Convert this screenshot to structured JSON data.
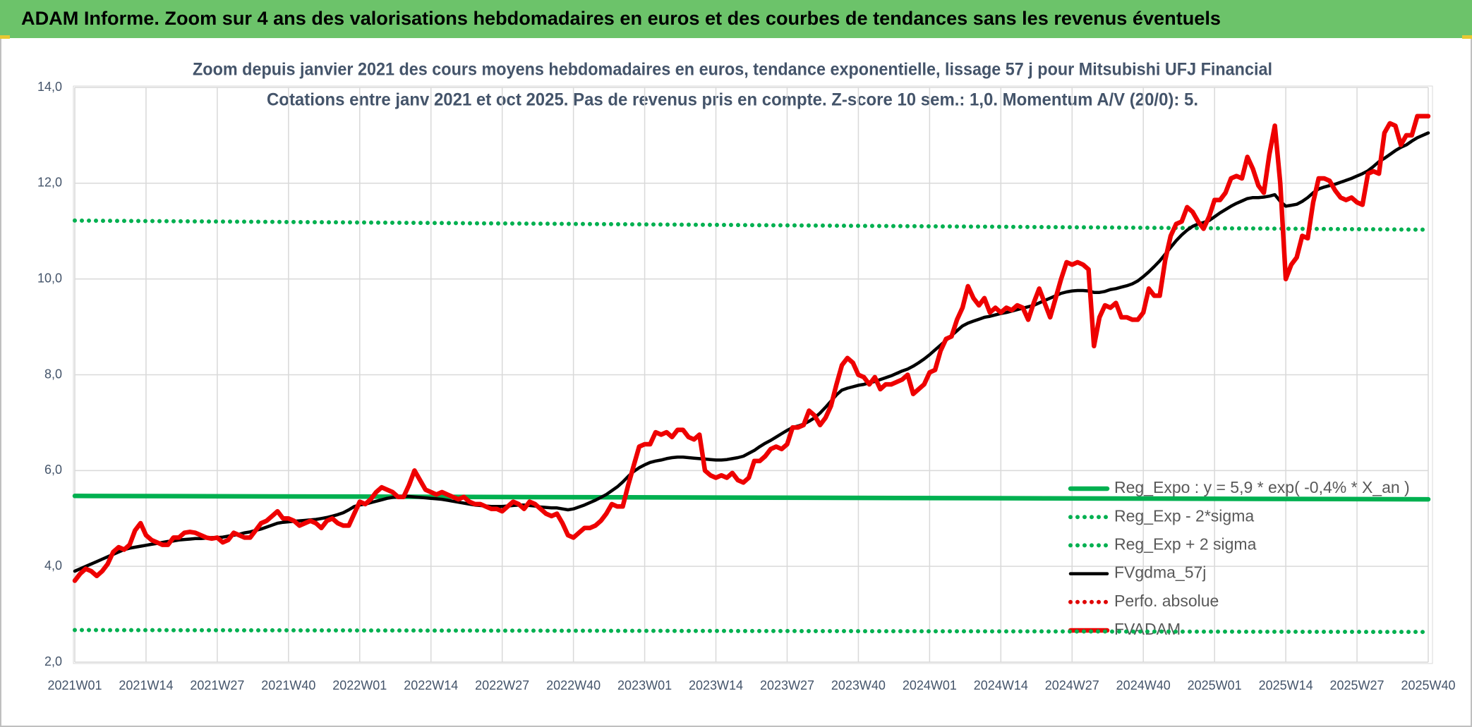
{
  "header": {
    "title": "ADAM Informe. Zoom sur 4 ans des valorisations hebdomadaires en euros et des courbes de tendances sans les revenus éventuels"
  },
  "chart_data": {
    "type": "line",
    "title": "Zoom depuis janvier 2021 des cours moyens hebdomadaires en euros, tendance exponentielle, lissage 57 j pour Mitsubishi UFJ Financial",
    "subtitle": "Cotations entre janv 2021 et oct 2025. Pas de revenus pris en compte. Z-score 10 sem.: 1,0. Momentum A/V (20/0): 5.",
    "ylim": [
      2,
      14
    ],
    "yticks": [
      {
        "value": 2,
        "label": "2,0"
      },
      {
        "value": 4,
        "label": "4,0"
      },
      {
        "value": 6,
        "label": "6,0"
      },
      {
        "value": 8,
        "label": "8,0"
      },
      {
        "value": 10,
        "label": "10,0"
      },
      {
        "value": 12,
        "label": "12,0"
      },
      {
        "value": 14,
        "label": "14,0"
      }
    ],
    "grid": true,
    "legend": "lower right",
    "categories": [
      "2021W01",
      null,
      null,
      null,
      null,
      null,
      null,
      null,
      null,
      null,
      null,
      null,
      null,
      "2021W14",
      null,
      null,
      null,
      null,
      null,
      null,
      null,
      null,
      null,
      null,
      null,
      null,
      "2021W27",
      null,
      null,
      null,
      null,
      null,
      null,
      null,
      null,
      null,
      null,
      null,
      null,
      "2021W40",
      null,
      null,
      null,
      null,
      null,
      null,
      null,
      null,
      null,
      null,
      null,
      null,
      "2022W01",
      null,
      null,
      null,
      null,
      null,
      null,
      null,
      null,
      null,
      null,
      null,
      null,
      "2022W14",
      null,
      null,
      null,
      null,
      null,
      null,
      null,
      null,
      null,
      null,
      null,
      null,
      "2022W27",
      null,
      null,
      null,
      null,
      null,
      null,
      null,
      null,
      null,
      null,
      null,
      null,
      "2022W40",
      null,
      null,
      null,
      null,
      null,
      null,
      null,
      null,
      null,
      null,
      null,
      null,
      "2023W01",
      null,
      null,
      null,
      null,
      null,
      null,
      null,
      null,
      null,
      null,
      null,
      null,
      "2023W14",
      null,
      null,
      null,
      null,
      null,
      null,
      null,
      null,
      null,
      null,
      null,
      null,
      "2023W27",
      null,
      null,
      null,
      null,
      null,
      null,
      null,
      null,
      null,
      null,
      null,
      null,
      "2023W40",
      null,
      null,
      null,
      null,
      null,
      null,
      null,
      null,
      null,
      null,
      null,
      null,
      "2024W01",
      null,
      null,
      null,
      null,
      null,
      null,
      null,
      null,
      null,
      null,
      null,
      null,
      "2024W14",
      null,
      null,
      null,
      null,
      null,
      null,
      null,
      null,
      null,
      null,
      null,
      null,
      "2024W27",
      null,
      null,
      null,
      null,
      null,
      null,
      null,
      null,
      null,
      null,
      null,
      null,
      "2024W40",
      null,
      null,
      null,
      null,
      null,
      null,
      null,
      null,
      null,
      null,
      null,
      null,
      "2025W01",
      null,
      null,
      null,
      null,
      null,
      null,
      null,
      null,
      null,
      null,
      null,
      null,
      "2025W14",
      null,
      null,
      null,
      null,
      null,
      null,
      null,
      null,
      null,
      null,
      null,
      null,
      "2025W27",
      null,
      null,
      null,
      null,
      null,
      null,
      null,
      null,
      null,
      null,
      null,
      null,
      "2025W40"
    ],
    "series": [
      {
        "name": "Reg_Expo : y = 5,9 * exp( -0,4% * X_an )",
        "color": "#00b050",
        "style": "solid",
        "x": [
          "2021W01",
          "2025W40"
        ],
        "values": [
          5.47,
          5.4
        ]
      },
      {
        "name": "Reg_Exp - 2*sigma",
        "color": "#00b050",
        "style": "dotted",
        "x": [
          "2021W01",
          "2025W40"
        ],
        "values": [
          2.67,
          2.63
        ]
      },
      {
        "name": "Reg_Exp + 2 sigma",
        "color": "#00b050",
        "style": "dotted",
        "x": [
          "2021W01",
          "2025W40"
        ],
        "values": [
          11.22,
          11.03
        ]
      },
      {
        "name": "FVgdma_57j",
        "color": "#000000",
        "style": "solid",
        "values": [
          3.9,
          3.95,
          4.0,
          4.05,
          4.1,
          4.15,
          4.2,
          4.25,
          4.3,
          4.35,
          4.38,
          4.4,
          4.42,
          4.44,
          4.46,
          4.48,
          4.5,
          4.52,
          4.53,
          4.55,
          4.56,
          4.57,
          4.58,
          4.58,
          4.59,
          4.6,
          4.6,
          4.61,
          4.63,
          4.65,
          4.67,
          4.7,
          4.72,
          4.75,
          4.78,
          4.82,
          4.86,
          4.9,
          4.92,
          4.93,
          4.94,
          4.95,
          4.96,
          4.97,
          4.98,
          5.0,
          5.02,
          5.05,
          5.08,
          5.12,
          5.18,
          5.25,
          5.28,
          5.3,
          5.33,
          5.36,
          5.39,
          5.42,
          5.44,
          5.45,
          5.46,
          5.46,
          5.45,
          5.44,
          5.43,
          5.42,
          5.41,
          5.4,
          5.38,
          5.36,
          5.34,
          5.32,
          5.3,
          5.28,
          5.27,
          5.26,
          5.25,
          5.25,
          5.25,
          5.26,
          5.27,
          5.28,
          5.28,
          5.27,
          5.26,
          5.24,
          5.23,
          5.22,
          5.22,
          5.2,
          5.18,
          5.2,
          5.24,
          5.28,
          5.33,
          5.38,
          5.44,
          5.5,
          5.58,
          5.66,
          5.76,
          5.88,
          5.98,
          6.06,
          6.12,
          6.17,
          6.2,
          6.22,
          6.25,
          6.27,
          6.28,
          6.28,
          6.27,
          6.26,
          6.25,
          6.24,
          6.23,
          6.22,
          6.22,
          6.23,
          6.25,
          6.27,
          6.3,
          6.36,
          6.42,
          6.5,
          6.57,
          6.63,
          6.7,
          6.77,
          6.84,
          6.9,
          6.93,
          6.97,
          7.03,
          7.1,
          7.2,
          7.32,
          7.45,
          7.58,
          7.68,
          7.72,
          7.75,
          7.78,
          7.8,
          7.83,
          7.86,
          7.9,
          7.94,
          7.98,
          8.03,
          8.08,
          8.12,
          8.18,
          8.25,
          8.33,
          8.42,
          8.52,
          8.62,
          8.72,
          8.82,
          8.92,
          9.02,
          9.08,
          9.12,
          9.16,
          9.2,
          9.22,
          9.25,
          9.28,
          9.3,
          9.33,
          9.36,
          9.39,
          9.42,
          9.45,
          9.5,
          9.55,
          9.6,
          9.65,
          9.7,
          9.73,
          9.75,
          9.76,
          9.76,
          9.75,
          9.72,
          9.72,
          9.74,
          9.78,
          9.8,
          9.83,
          9.86,
          9.9,
          9.96,
          10.05,
          10.15,
          10.26,
          10.38,
          10.52,
          10.66,
          10.8,
          10.92,
          11.02,
          11.1,
          11.15,
          11.18,
          11.22,
          11.3,
          11.38,
          11.45,
          11.52,
          11.58,
          11.63,
          11.68,
          11.7,
          11.7,
          11.71,
          11.73,
          11.76,
          11.62,
          11.52,
          11.54,
          11.56,
          11.62,
          11.7,
          11.8,
          11.88,
          11.92,
          11.95,
          11.98,
          12.02,
          12.06,
          12.1,
          12.15,
          12.2,
          12.26,
          12.35,
          12.45,
          12.52,
          12.6,
          12.68,
          12.75,
          12.8,
          12.88,
          12.95,
          13.0,
          13.05
        ]
      },
      {
        "name": "Perfo. absolue",
        "color": "#e00000",
        "style": "dotted"
      },
      {
        "name": "FVADAM",
        "color": "#ee0000",
        "style": "solid",
        "values": [
          3.7,
          3.85,
          3.95,
          3.9,
          3.8,
          3.9,
          4.05,
          4.3,
          4.4,
          4.35,
          4.45,
          4.75,
          4.9,
          4.65,
          4.55,
          4.5,
          4.45,
          4.45,
          4.6,
          4.6,
          4.7,
          4.72,
          4.7,
          4.65,
          4.6,
          4.58,
          4.6,
          4.5,
          4.55,
          4.7,
          4.65,
          4.6,
          4.6,
          4.75,
          4.9,
          4.95,
          5.05,
          5.15,
          5.0,
          5.0,
          4.95,
          4.85,
          4.9,
          4.95,
          4.9,
          4.8,
          4.95,
          5.0,
          4.9,
          4.85,
          4.85,
          5.1,
          5.35,
          5.3,
          5.4,
          5.55,
          5.65,
          5.6,
          5.55,
          5.45,
          5.45,
          5.7,
          6.0,
          5.8,
          5.6,
          5.55,
          5.5,
          5.55,
          5.5,
          5.45,
          5.4,
          5.45,
          5.35,
          5.3,
          5.3,
          5.25,
          5.2,
          5.2,
          5.15,
          5.25,
          5.35,
          5.3,
          5.2,
          5.35,
          5.3,
          5.2,
          5.1,
          5.05,
          5.1,
          4.9,
          4.65,
          4.6,
          4.7,
          4.8,
          4.8,
          4.85,
          4.95,
          5.1,
          5.3,
          5.25,
          5.25,
          5.7,
          6.1,
          6.5,
          6.55,
          6.55,
          6.8,
          6.75,
          6.8,
          6.7,
          6.85,
          6.85,
          6.7,
          6.65,
          6.75,
          6.0,
          5.9,
          5.85,
          5.9,
          5.85,
          5.95,
          5.8,
          5.75,
          5.85,
          6.2,
          6.2,
          6.3,
          6.45,
          6.5,
          6.45,
          6.55,
          6.9,
          6.9,
          6.95,
          7.25,
          7.15,
          6.95,
          7.1,
          7.35,
          7.8,
          8.2,
          8.35,
          8.25,
          8.0,
          7.95,
          7.8,
          7.95,
          7.7,
          7.8,
          7.8,
          7.85,
          7.9,
          8.0,
          7.6,
          7.7,
          7.8,
          8.05,
          8.1,
          8.5,
          8.75,
          8.8,
          9.15,
          9.4,
          9.85,
          9.6,
          9.45,
          9.6,
          9.3,
          9.4,
          9.3,
          9.4,
          9.35,
          9.45,
          9.4,
          9.15,
          9.5,
          9.8,
          9.5,
          9.2,
          9.6,
          10.0,
          10.35,
          10.3,
          10.35,
          10.3,
          10.2,
          8.6,
          9.2,
          9.45,
          9.4,
          9.5,
          9.2,
          9.2,
          9.15,
          9.15,
          9.3,
          9.8,
          9.65,
          9.65,
          10.4,
          10.9,
          11.15,
          11.2,
          11.5,
          11.4,
          11.2,
          11.05,
          11.3,
          11.65,
          11.65,
          11.8,
          12.1,
          12.15,
          12.1,
          12.55,
          12.3,
          11.95,
          11.8,
          12.6,
          13.2,
          12.0,
          10.0,
          10.3,
          10.45,
          10.9,
          10.85,
          11.6,
          12.1,
          12.1,
          12.05,
          11.85,
          11.7,
          11.65,
          11.7,
          11.6,
          11.55,
          12.2,
          12.25,
          12.2,
          13.05,
          13.25,
          13.2,
          12.8,
          13.0,
          13.0,
          13.4,
          13.4,
          13.4
        ]
      }
    ]
  }
}
